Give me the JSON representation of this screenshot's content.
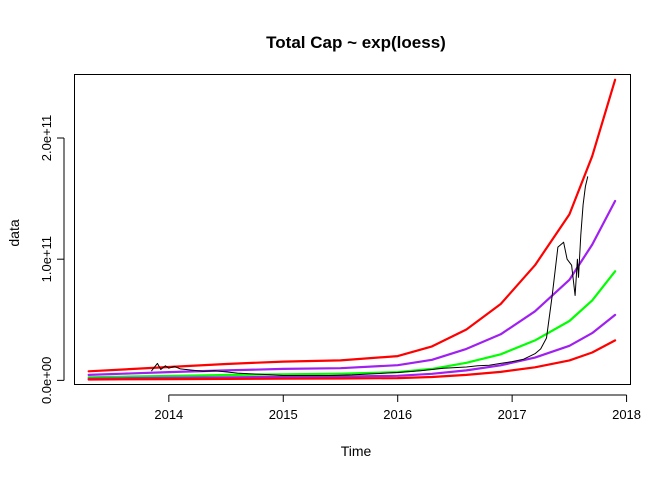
{
  "chart_data": {
    "type": "line",
    "title": "Total Cap ~ exp(loess)",
    "xlabel": "Time",
    "ylabel": "data",
    "xlim": [
      2013.18,
      2018.03
    ],
    "ylim": [
      -3000000000.0,
      252000000000.0
    ],
    "x_ticks": [
      2014,
      2015,
      2016,
      2017,
      2018
    ],
    "x_tick_labels": [
      "2014",
      "2015",
      "2016",
      "2017",
      "2018"
    ],
    "y_ticks": [
      0,
      100000000000.0,
      200000000000.0
    ],
    "y_tick_labels": [
      "0.0e+00",
      "1.0e+11",
      "2.0e+11"
    ],
    "grid": false,
    "legend": "none",
    "series": [
      {
        "color": "#ff0000",
        "width": 2.2,
        "x": [
          2013.3,
          2013.6,
          2014.0,
          2014.5,
          2015.0,
          2015.5,
          2016.0,
          2016.3,
          2016.6,
          2016.9,
          2017.2,
          2017.5,
          2017.7,
          2017.9
        ],
        "values": [
          7500000000.0,
          9000000000.0,
          11000000000.0,
          13500000000.0,
          15500000000.0,
          16500000000.0,
          20000000000.0,
          28000000000.0,
          42000000000.0,
          63000000000.0,
          95000000000.0,
          137000000000.0,
          185000000000.0,
          248000000000.0
        ]
      },
      {
        "color": "#a020f0",
        "width": 2.2,
        "x": [
          2013.3,
          2013.6,
          2014.0,
          2014.5,
          2015.0,
          2015.5,
          2016.0,
          2016.3,
          2016.6,
          2016.9,
          2017.2,
          2017.5,
          2017.7,
          2017.9
        ],
        "values": [
          4500000000.0,
          5500000000.0,
          6800000000.0,
          8200000000.0,
          9500000000.0,
          10000000000.0,
          12500000000.0,
          17000000000.0,
          26000000000.0,
          38000000000.0,
          57000000000.0,
          83000000000.0,
          112000000000.0,
          148000000000.0
        ]
      },
      {
        "color": "#00ff00",
        "width": 2.2,
        "x": [
          2013.3,
          2013.6,
          2014.0,
          2014.5,
          2015.0,
          2015.5,
          2016.0,
          2016.3,
          2016.6,
          2016.9,
          2017.2,
          2017.5,
          2017.7,
          2017.9
        ],
        "values": [
          2500000000.0,
          3000000000.0,
          3600000000.0,
          4400000000.0,
          5000000000.0,
          5500000000.0,
          6800000000.0,
          9500000000.0,
          14500000000.0,
          21500000000.0,
          33000000000.0,
          49000000000.0,
          66000000000.0,
          90000000000.0
        ]
      },
      {
        "color": "#a020f0",
        "width": 2.2,
        "x": [
          2013.3,
          2013.6,
          2014.0,
          2014.5,
          2015.0,
          2015.5,
          2016.0,
          2016.3,
          2016.6,
          2016.9,
          2017.2,
          2017.5,
          2017.7,
          2017.9
        ],
        "values": [
          1400000000.0,
          1700000000.0,
          2100000000.0,
          2500000000.0,
          2900000000.0,
          3100000000.0,
          3800000000.0,
          5400000000.0,
          8200000000.0,
          12400000000.0,
          18800000000.0,
          28500000000.0,
          39000000000.0,
          54000000000.0
        ]
      },
      {
        "color": "#ff0000",
        "width": 2.2,
        "x": [
          2013.3,
          2013.6,
          2014.0,
          2014.5,
          2015.0,
          2015.5,
          2016.0,
          2016.3,
          2016.6,
          2016.9,
          2017.2,
          2017.5,
          2017.7,
          2017.9
        ],
        "values": [
          700000000.0,
          850000000.0,
          1000000000.0,
          1200000000.0,
          1400000000.0,
          1500000000.0,
          1900000000.0,
          2800000000.0,
          4500000000.0,
          7000000000.0,
          10800000000.0,
          16500000000.0,
          23000000000.0,
          33000000000.0
        ]
      },
      {
        "color": "#000000",
        "width": 1,
        "x": [
          2013.85,
          2013.9,
          2013.93,
          2013.97,
          2014.0,
          2014.05,
          2014.1,
          2014.2,
          2014.3,
          2014.4,
          2014.5,
          2014.6,
          2014.7,
          2014.8,
          2014.9,
          2015.0,
          2015.2,
          2015.4,
          2015.6,
          2015.8,
          2016.0,
          2016.2,
          2016.4,
          2016.5,
          2016.6,
          2016.7,
          2016.8,
          2016.9,
          2017.0,
          2017.1,
          2017.2,
          2017.25,
          2017.3,
          2017.35,
          2017.4,
          2017.45,
          2017.48,
          2017.52,
          2017.55,
          2017.57,
          2017.58,
          2017.6,
          2017.62,
          2017.64,
          2017.66
        ],
        "values": [
          8000000000.0,
          14000000000.0,
          9000000000.0,
          12000000000.0,
          10000000000.0,
          11500000000.0,
          9500000000.0,
          8500000000.0,
          7500000000.0,
          8000000000.0,
          7000000000.0,
          6000000000.0,
          5500000000.0,
          5000000000.0,
          4500000000.0,
          4000000000.0,
          4000000000.0,
          4000000000.0,
          4500000000.0,
          5500000000.0,
          6500000000.0,
          8000000000.0,
          10000000000.0,
          10500000000.0,
          11000000000.0,
          12000000000.0,
          12500000000.0,
          14000000000.0,
          15500000000.0,
          17500000000.0,
          22000000000.0,
          26000000000.0,
          35000000000.0,
          70000000000.0,
          110000000000.0,
          114000000000.0,
          100000000000.0,
          95000000000.0,
          70000000000.0,
          100000000000.0,
          85000000000.0,
          120000000000.0,
          145000000000.0,
          160000000000.0,
          168000000000.0
        ]
      }
    ]
  }
}
